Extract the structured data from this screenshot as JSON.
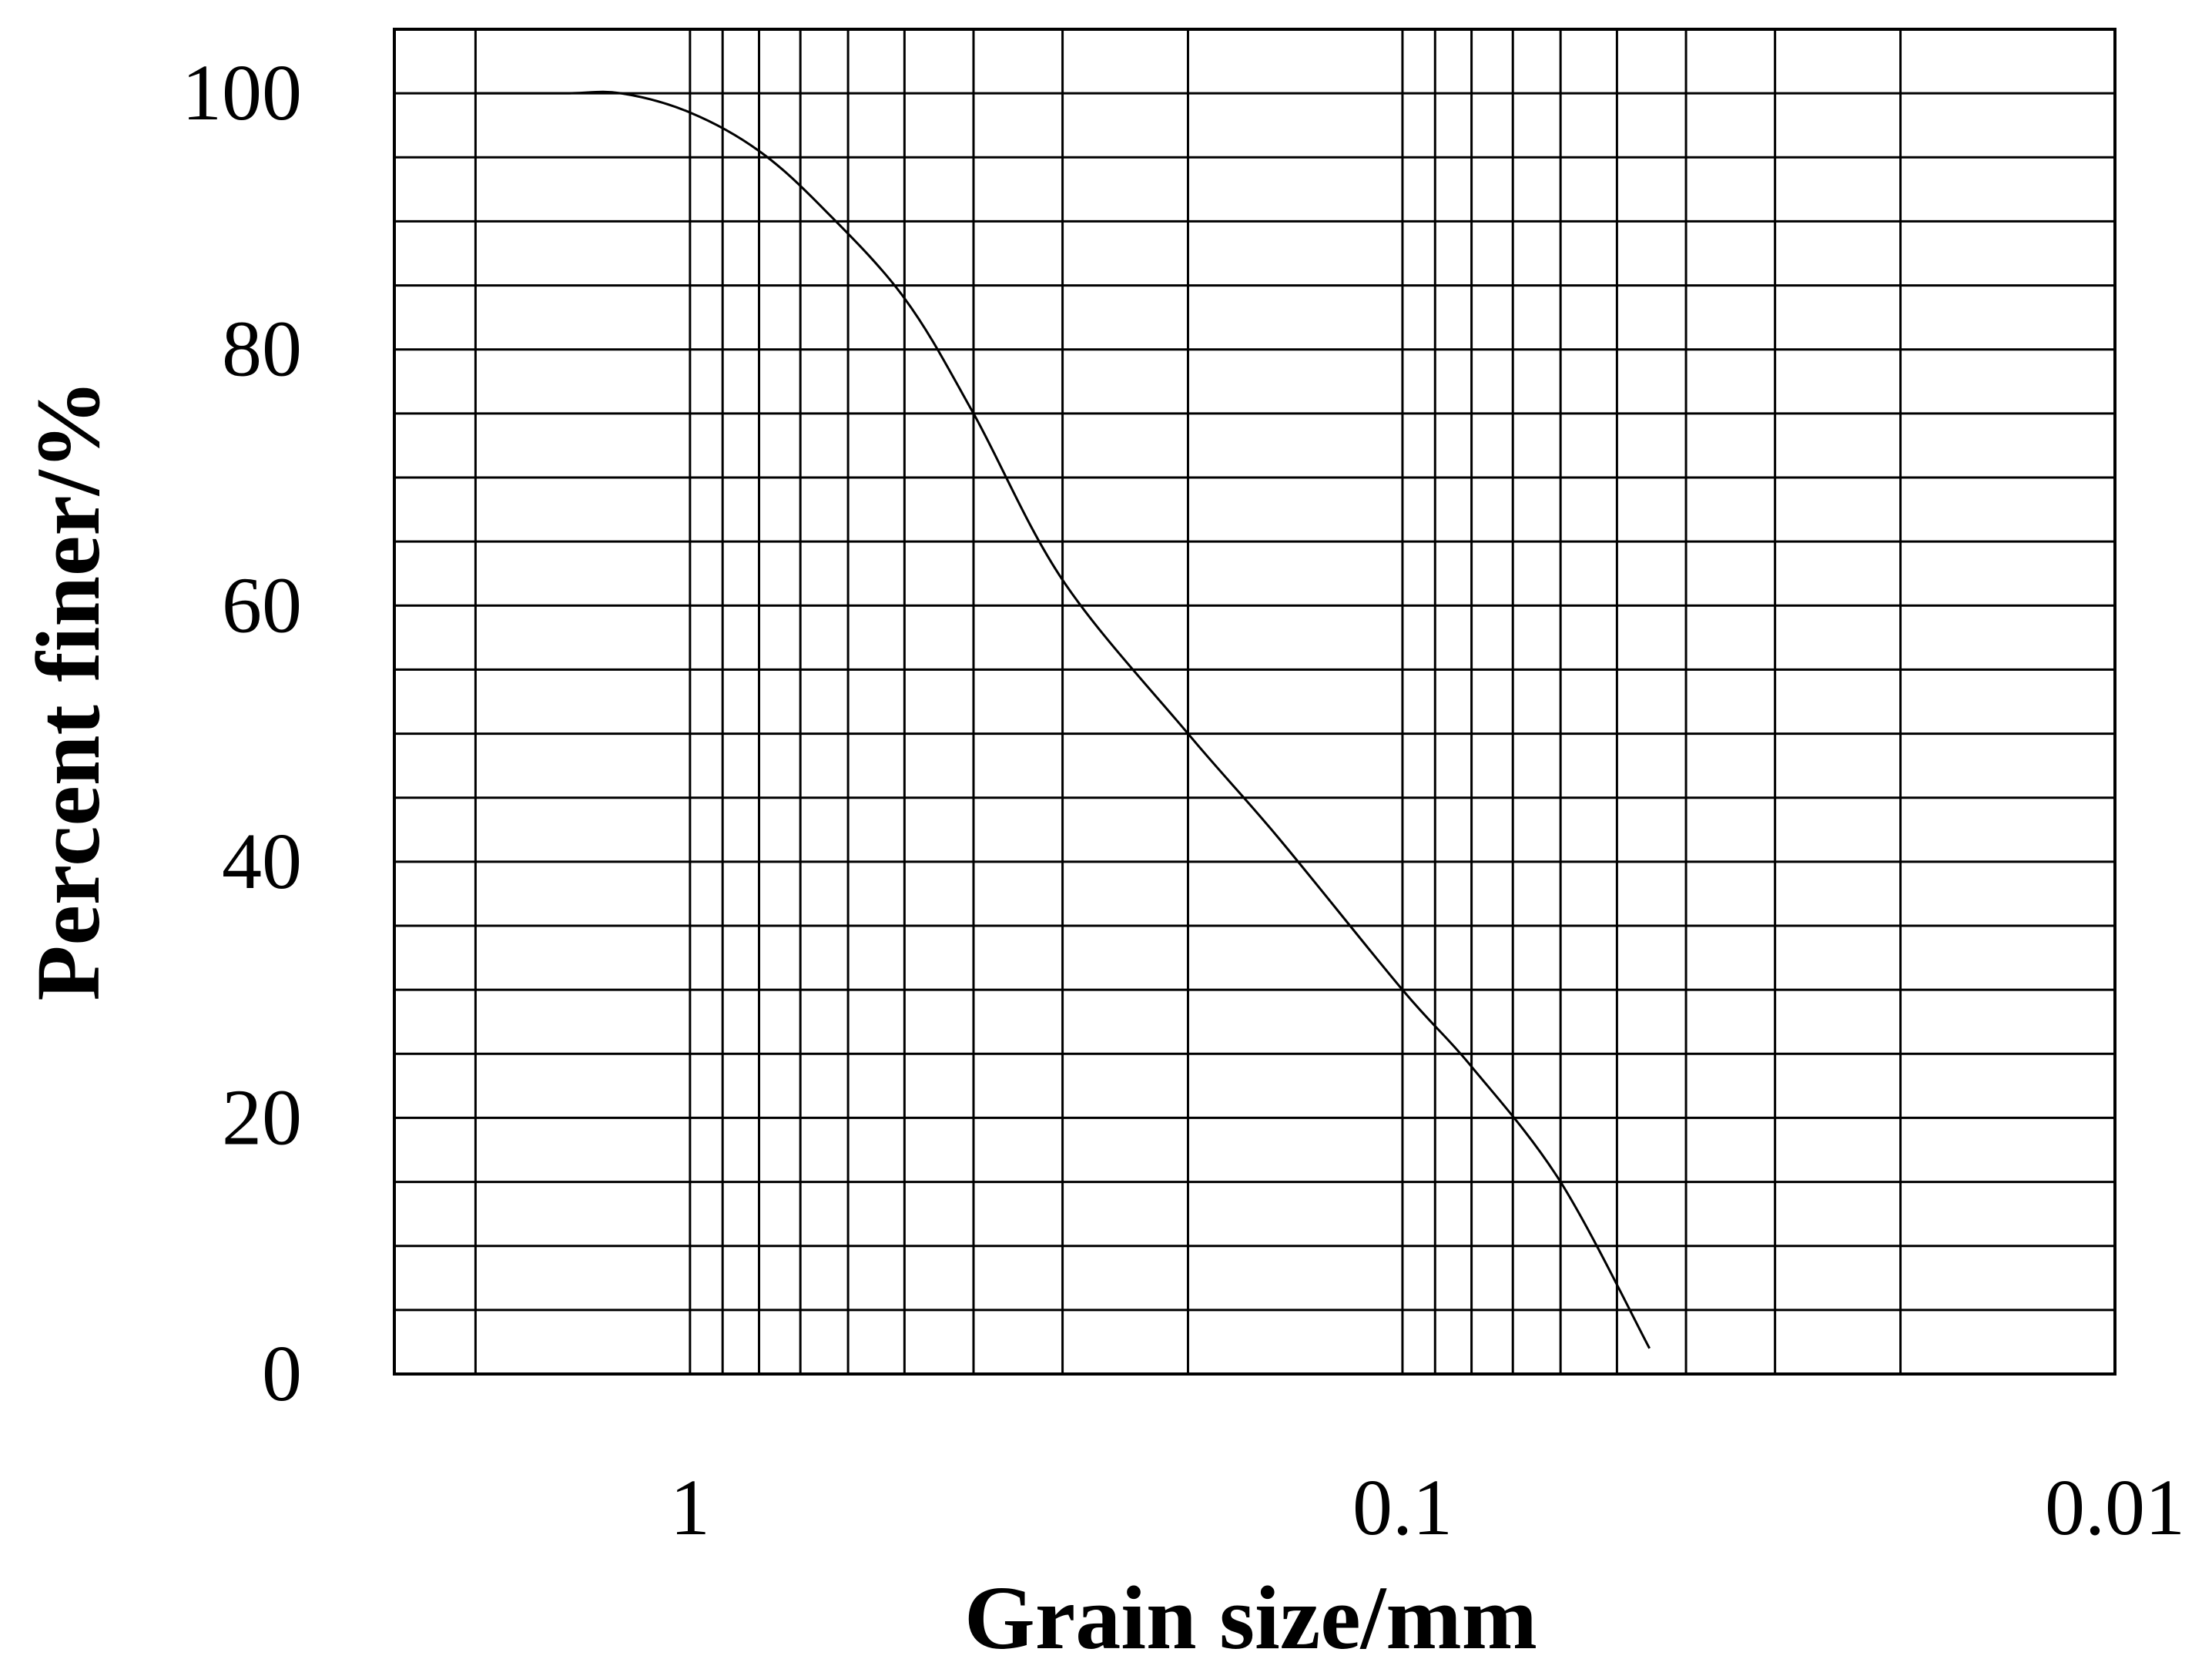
{
  "chart_data": {
    "type": "line",
    "title": "",
    "xlabel": "Grain size/mm",
    "ylabel": "Percent finer/%",
    "x_scale": "log",
    "x_reversed": true,
    "xlim": [
      2.6,
      0.01
    ],
    "ylim": [
      0,
      105
    ],
    "grid": true,
    "x_ticks": [
      1,
      0.1,
      0.01
    ],
    "x_tick_labels": [
      "1",
      "0.1",
      "0.01"
    ],
    "y_ticks": [
      0,
      20,
      40,
      60,
      80,
      100
    ],
    "y_tick_labels": [
      "0",
      "20",
      "40",
      "60",
      "80",
      "100"
    ],
    "x_gridlines": [
      2.0,
      1.0,
      0.9,
      0.8,
      0.7,
      0.6,
      0.5,
      0.4,
      0.3,
      0.2,
      0.1,
      0.09,
      0.08,
      0.07,
      0.06,
      0.05,
      0.04,
      0.03,
      0.02
    ],
    "y_gridlines": [
      5,
      10,
      15,
      20,
      25,
      30,
      35,
      40,
      45,
      50,
      55,
      60,
      65,
      70,
      75,
      80,
      85,
      90,
      95,
      100
    ],
    "colors": {
      "line": "#000000",
      "grid": "#000000",
      "background": "#ffffff"
    },
    "series": [
      {
        "x": [
          2.0,
          1.5,
          1.25,
          1.0,
          0.8,
          0.65,
          0.5,
          0.4,
          0.3,
          0.2,
          0.15,
          0.1,
          0.08,
          0.06,
          0.045
        ],
        "y": [
          100,
          100,
          100,
          98.5,
          95.5,
          91,
          84,
          75,
          62,
          50,
          42,
          30,
          24,
          15,
          2
        ]
      }
    ]
  }
}
